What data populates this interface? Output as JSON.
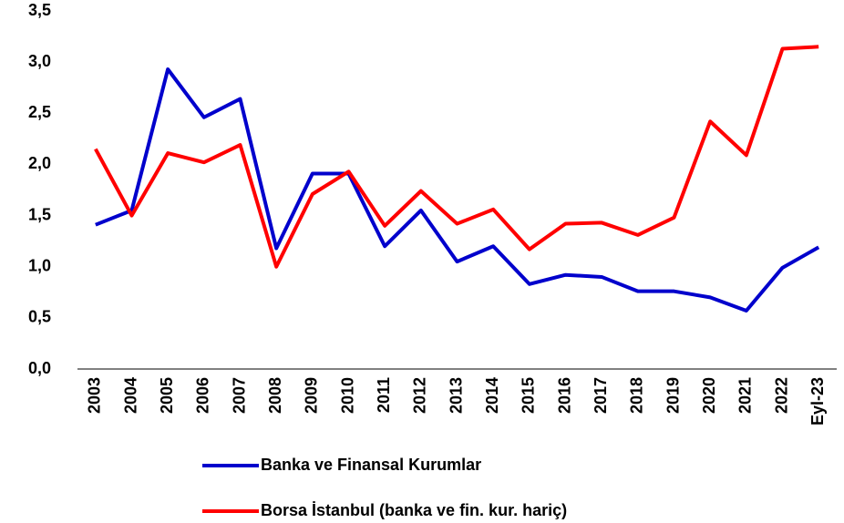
{
  "chart_data": {
    "type": "line",
    "categories": [
      "2003",
      "2004",
      "2005",
      "2006",
      "2007",
      "2008",
      "2009",
      "2010",
      "2011",
      "2012",
      "2013",
      "2014",
      "2015",
      "2016",
      "2017",
      "2018",
      "2019",
      "2020",
      "2021",
      "2022",
      "Eyl-23"
    ],
    "series": [
      {
        "name": "Banka ve Finansal Kurumlar",
        "color": "#0000cc",
        "values": [
          1.41,
          1.55,
          2.93,
          2.46,
          2.64,
          1.18,
          1.91,
          1.91,
          1.2,
          1.55,
          1.05,
          1.2,
          0.83,
          0.92,
          0.9,
          0.76,
          0.76,
          0.7,
          0.57,
          0.99,
          1.19
        ]
      },
      {
        "name": "Borsa İstanbul (banka ve fin. kur. hariç)",
        "color": "#ff0000",
        "values": [
          2.15,
          1.5,
          2.11,
          2.02,
          2.19,
          1.0,
          1.71,
          1.93,
          1.4,
          1.74,
          1.42,
          1.56,
          1.17,
          1.42,
          1.43,
          1.31,
          1.48,
          2.42,
          2.09,
          3.13,
          3.15
        ]
      }
    ],
    "ylim": [
      0,
      3.5
    ],
    "yticks": [
      {
        "value": 0,
        "label": "0,0"
      },
      {
        "value": 0.5,
        "label": "0,5"
      },
      {
        "value": 1,
        "label": "1,0"
      },
      {
        "value": 1.5,
        "label": "1,5"
      },
      {
        "value": 2,
        "label": "2,0"
      },
      {
        "value": 2.5,
        "label": "2,5"
      },
      {
        "value": 3,
        "label": "3,0"
      },
      {
        "value": 3.5,
        "label": "3,5"
      }
    ],
    "grid": false,
    "legend": "bottom"
  }
}
